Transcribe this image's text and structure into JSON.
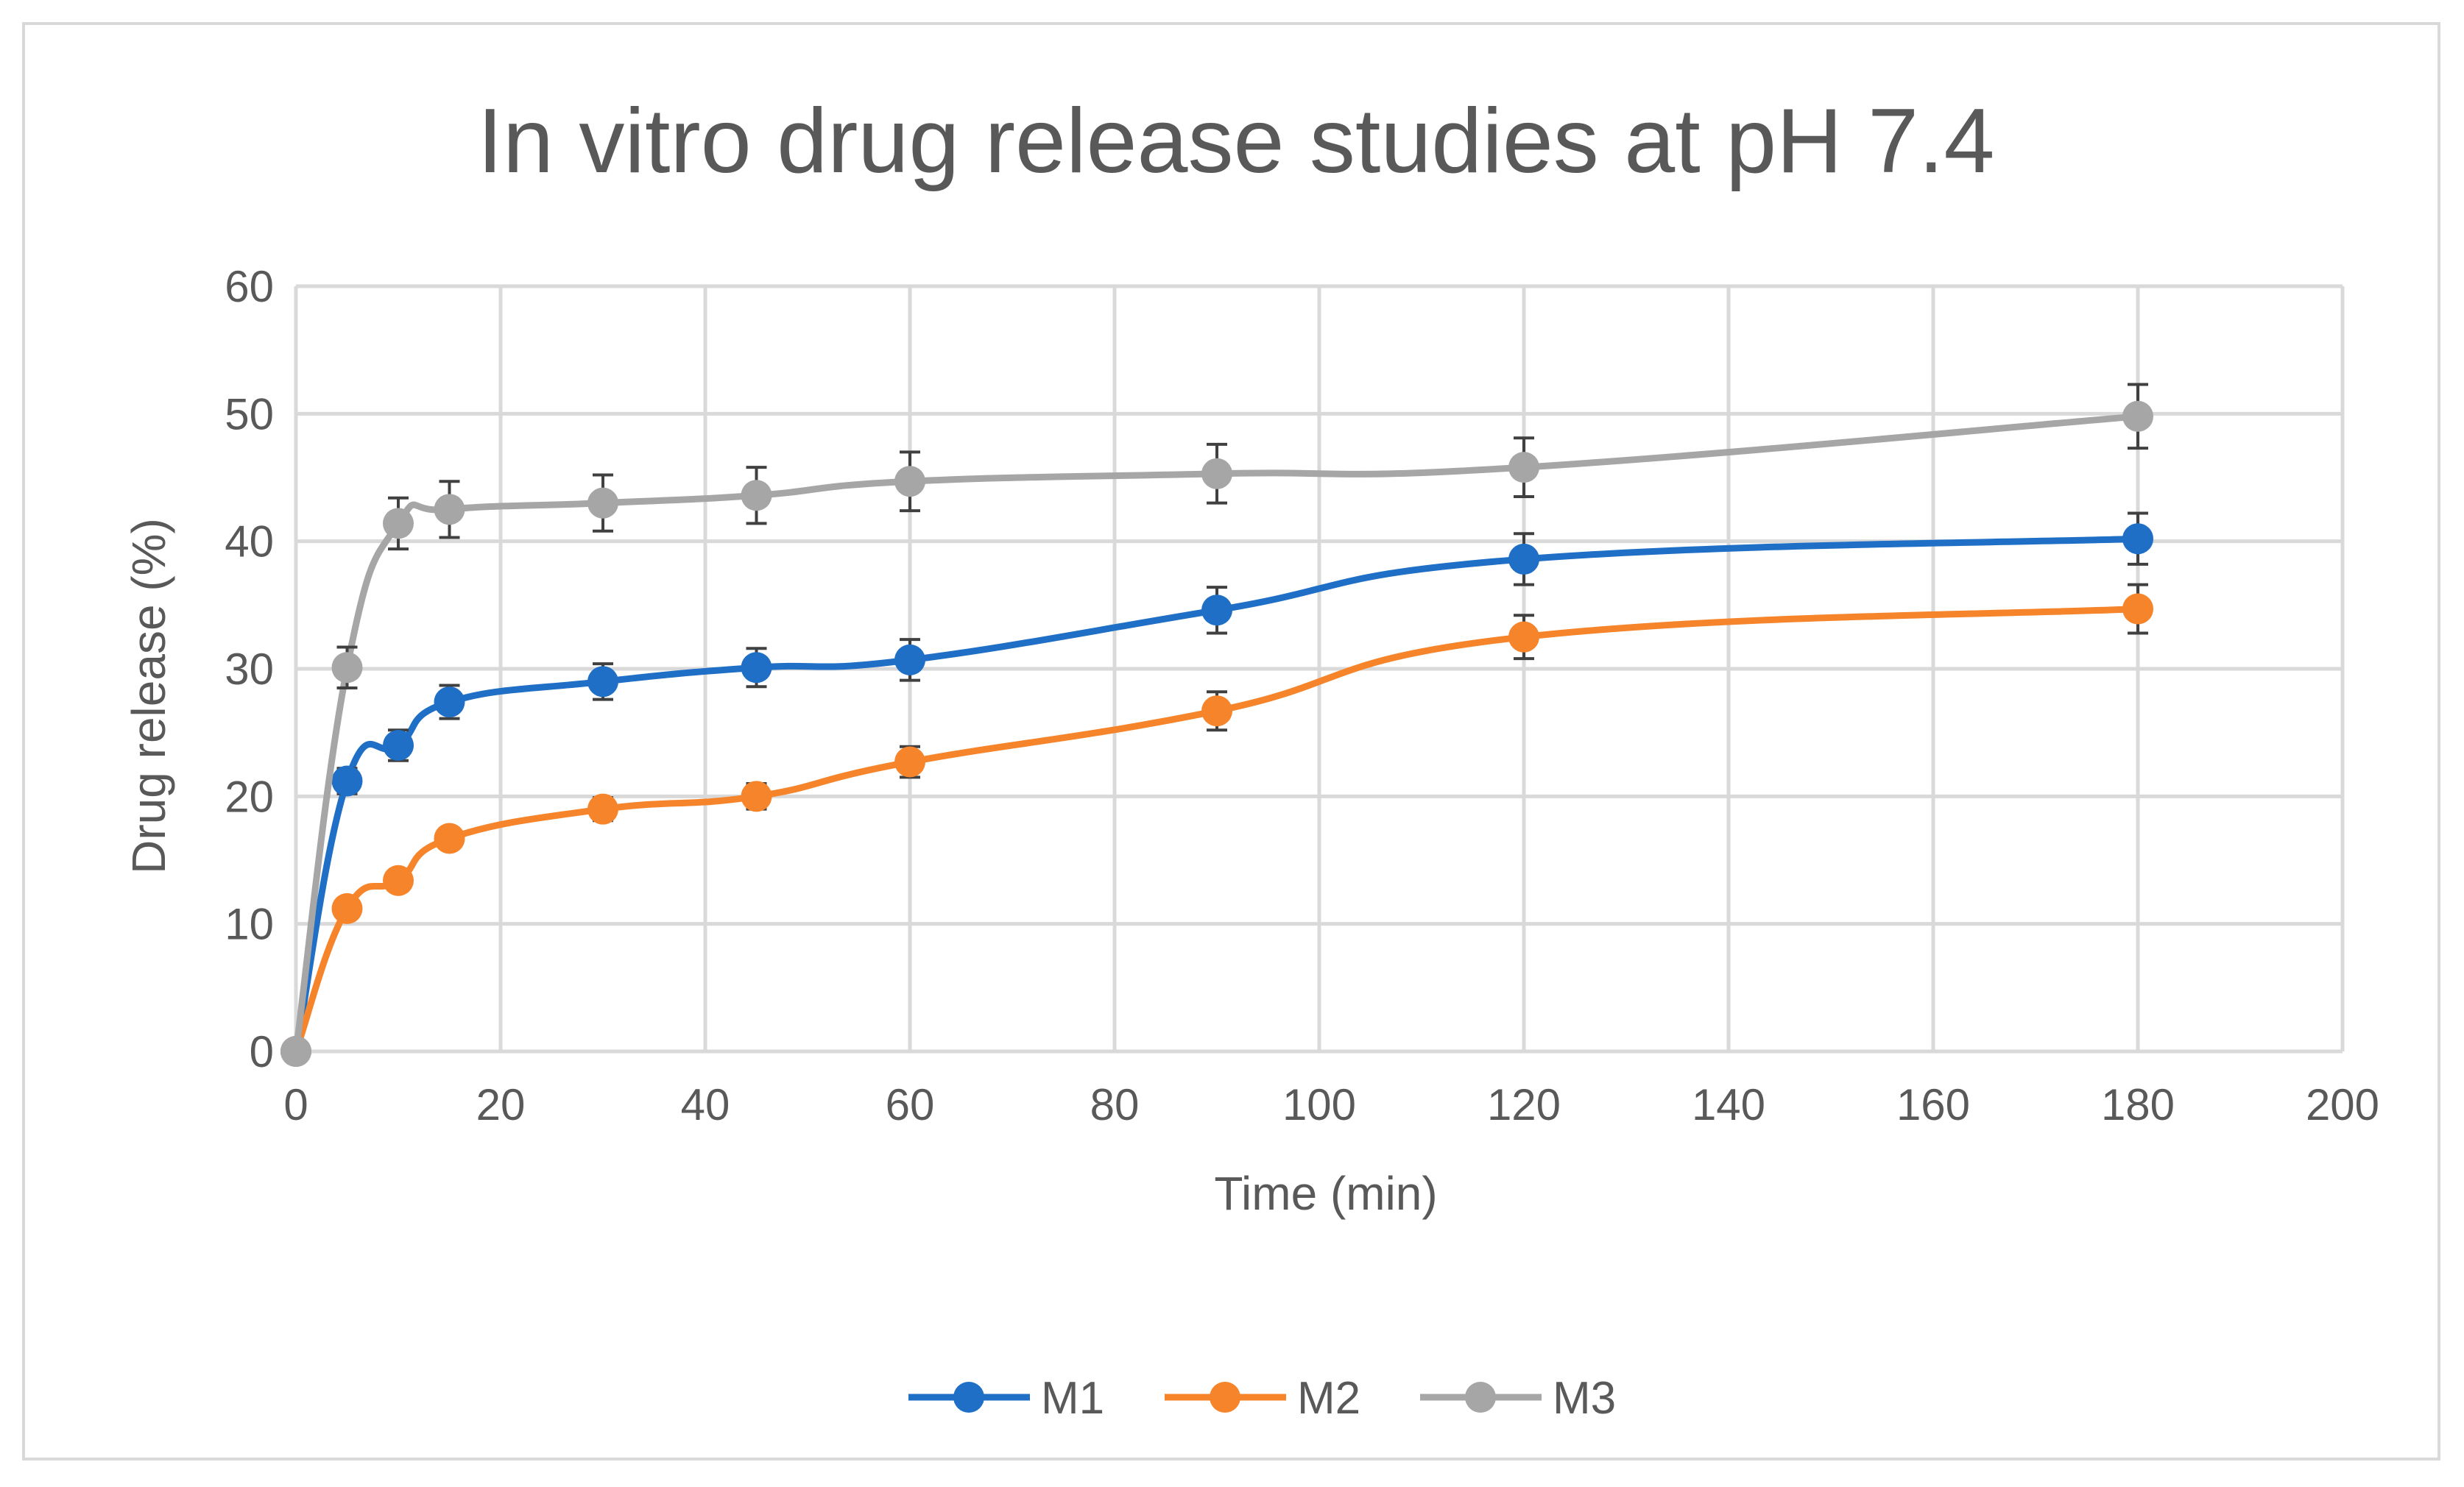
{
  "chart_data": {
    "type": "line",
    "title": "In vitro drug release studies at pH 7.4",
    "xlabel": "Time (min)",
    "ylabel": "Drug release (%)",
    "xlim": [
      0,
      200
    ],
    "ylim": [
      0,
      60
    ],
    "x_ticks": [
      0,
      20,
      40,
      60,
      80,
      100,
      120,
      140,
      160,
      180,
      200
    ],
    "y_ticks": [
      0,
      10,
      20,
      30,
      40,
      50,
      60
    ],
    "grid": true,
    "legend_position": "bottom",
    "x": [
      0,
      5,
      10,
      15,
      30,
      45,
      60,
      90,
      120,
      180
    ],
    "series": [
      {
        "name": "M1",
        "color": "#1f6fc6",
        "values": [
          0,
          21.2,
          24.0,
          27.4,
          29.0,
          30.1,
          30.7,
          34.6,
          38.6,
          40.2
        ],
        "errors": [
          0,
          1.0,
          1.2,
          1.3,
          1.4,
          1.5,
          1.6,
          1.8,
          2.0,
          2.0
        ]
      },
      {
        "name": "M2",
        "color": "#f6842a",
        "values": [
          0,
          11.2,
          13.4,
          16.7,
          19.0,
          20.0,
          22.7,
          26.7,
          32.5,
          34.7
        ],
        "errors": [
          0,
          0.6,
          0.7,
          0.8,
          0.9,
          1.0,
          1.2,
          1.5,
          1.7,
          1.9
        ]
      },
      {
        "name": "M3",
        "color": "#a6a6a6",
        "values": [
          0,
          30.1,
          41.4,
          42.5,
          43.0,
          43.6,
          44.7,
          45.3,
          45.8,
          49.8
        ],
        "errors": [
          0,
          1.6,
          2.0,
          2.2,
          2.2,
          2.2,
          2.3,
          2.3,
          2.3,
          2.5
        ]
      }
    ]
  }
}
